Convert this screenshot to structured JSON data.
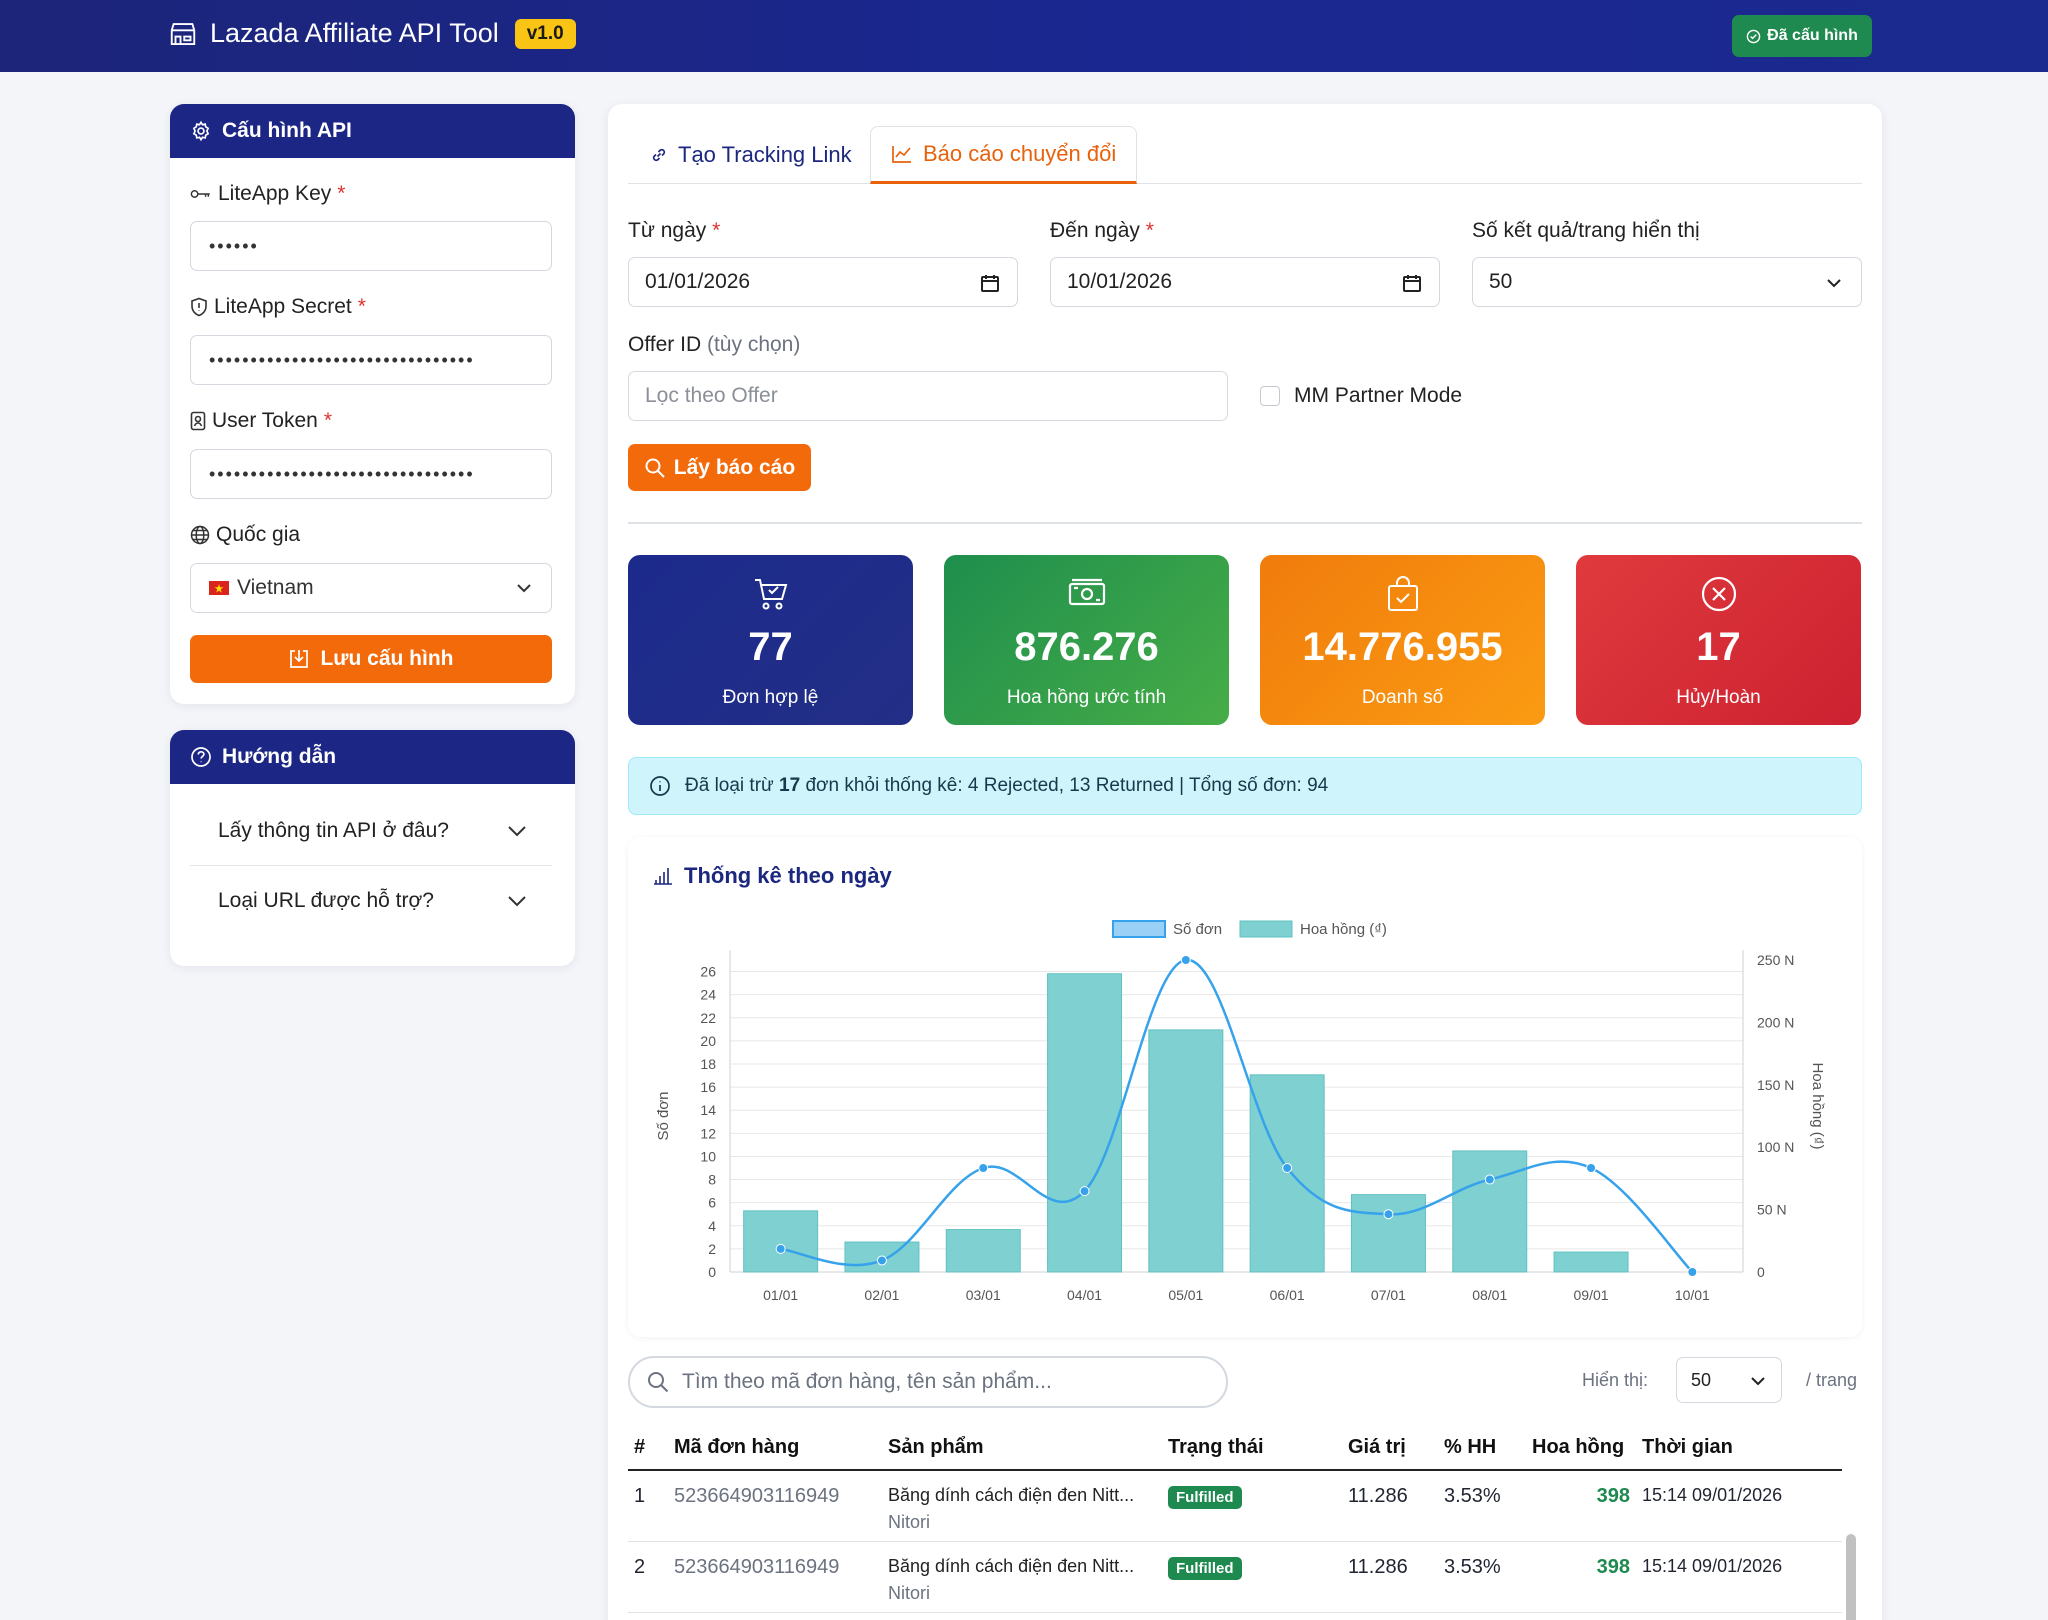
{
  "navbar": {
    "title": "Lazada Affiliate API Tool",
    "version": "v1.0",
    "configured_label": "Đã cấu hình",
    "icon": "shop-icon"
  },
  "config": {
    "header": "Cấu hình API",
    "liteapp_key_label": "LiteApp Key",
    "liteapp_key_value": "••••••",
    "liteapp_secret_label": "LiteApp Secret",
    "liteapp_secret_value": "••••••••••••••••••••••••••••••••",
    "user_token_label": "User Token",
    "user_token_value": "••••••••••••••••••••••••••••••••",
    "country_label": "Quốc gia",
    "country_value": "Vietnam",
    "save_label": "Lưu cấu hình",
    "required_mark": "*"
  },
  "guide": {
    "header": "Hướng dẫn",
    "items": [
      {
        "label": "Lấy thông tin API ở đâu?"
      },
      {
        "label": "Loại URL được hỗ trợ?"
      }
    ]
  },
  "tabs": [
    {
      "label": "Tạo Tracking Link",
      "active": false
    },
    {
      "label": "Báo cáo chuyển đổi",
      "active": true
    }
  ],
  "filters": {
    "from_label": "Từ ngày",
    "from_value": "01/01/2026",
    "to_label": "Đến ngày",
    "to_value": "10/01/2026",
    "per_page_label": "Số kết quả/trang hiển thị",
    "per_page_value": "50",
    "offer_label": "Offer ID",
    "offer_optional": "(tùy chọn)",
    "offer_placeholder": "Lọc theo Offer",
    "mm_partner_label": "MM Partner Mode",
    "get_report_label": "Lấy báo cáo"
  },
  "stats": [
    {
      "value": "77",
      "label": "Đơn hợp lệ",
      "icon": "cart-check-icon"
    },
    {
      "value": "876.276",
      "label": "Hoa hồng ước tính",
      "icon": "cash-icon"
    },
    {
      "value": "14.776.955",
      "label": "Doanh số",
      "icon": "bag-check-icon"
    },
    {
      "value": "17",
      "label": "Hủy/Hoàn",
      "icon": "x-circle-icon"
    }
  ],
  "alert": {
    "prefix": "Đã loại trừ",
    "count": "17",
    "suffix": "đơn khỏi thống kê: 4 Rejected, 13 Returned | Tổng số đơn: 94"
  },
  "chart_title": "Thống kê theo ngày",
  "chart_data": {
    "type": "bar",
    "categories": [
      "01/01",
      "02/01",
      "03/01",
      "04/01",
      "05/01",
      "06/01",
      "07/01",
      "08/01",
      "09/01",
      "10/01"
    ],
    "series": [
      {
        "name": "Số đơn",
        "type": "line",
        "axis": "left",
        "color": "#36a2eb",
        "values": [
          2,
          1,
          9,
          7,
          27,
          9,
          5,
          8,
          9,
          0
        ]
      },
      {
        "name": "Hoa hồng (₫)",
        "type": "bar",
        "axis": "right",
        "color": "#76cdcd",
        "values": [
          49000,
          24000,
          34000,
          239000,
          194000,
          158000,
          62000,
          97000,
          16000,
          0
        ]
      }
    ],
    "ylabel": "Số đơn",
    "ylabel_right": "Hoa hồng (₫)",
    "ylim": [
      0,
      27
    ],
    "ylim_right": [
      0,
      250000
    ],
    "yticks": [
      "0",
      "2",
      "4",
      "6",
      "8",
      "10",
      "12",
      "14",
      "16",
      "18",
      "20",
      "22",
      "24",
      "26"
    ],
    "yticks_right": [
      "0",
      "50 N",
      "100 N",
      "150 N",
      "200 N",
      "250 N"
    ],
    "legend_position": "top",
    "grid": true
  },
  "table_controls": {
    "search_placeholder": "Tìm theo mã đơn hàng, tên sản phẩm...",
    "show_label": "Hiển thị:",
    "show_value": "50",
    "per_page": "/ trang"
  },
  "table": {
    "columns": [
      "#",
      "Mã đơn hàng",
      "Sản phẩm",
      "Trạng thái",
      "Giá trị",
      "% HH",
      "Hoa hồng",
      "Thời gian"
    ],
    "rows": [
      {
        "idx": "1",
        "order_id": "523664903116949",
        "product": "Băng dính cách điện đen Nitt...",
        "brand": "Nitori",
        "status": "Fulfilled",
        "value": "11.286",
        "rate": "3.53%",
        "commission": "398",
        "time": "15:14 09/01/2026"
      },
      {
        "idx": "2",
        "order_id": "523664903116949",
        "product": "Băng dính cách điện đen Nitt...",
        "brand": "Nitori",
        "status": "Fulfilled",
        "value": "11.286",
        "rate": "3.53%",
        "commission": "398",
        "time": "15:14 09/01/2026"
      }
    ]
  },
  "colors": {
    "navy": "#1c2684",
    "orange": "#f26a0a",
    "green": "#1e8a4f",
    "red": "#d9313a",
    "info_bg": "#cff4fc"
  }
}
